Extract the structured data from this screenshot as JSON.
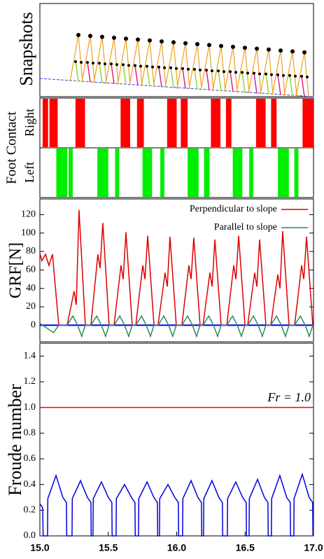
{
  "chart_data": [
    {
      "type": "illustration",
      "ylabel": "Snapshots"
    },
    {
      "type": "timeline",
      "ylabel": "Foot Contact",
      "xlim": [
        15,
        17
      ],
      "series": [
        {
          "name": "Right",
          "color": "#ff0000",
          "intervals": [
            [
              15.02,
              15.06
            ],
            [
              15.07,
              15.13
            ],
            [
              15.26,
              15.33
            ],
            [
              15.59,
              15.66
            ],
            [
              15.71,
              15.76
            ],
            [
              15.93,
              16.0
            ],
            [
              16.03,
              16.08
            ],
            [
              16.25,
              16.32
            ],
            [
              16.36,
              16.4
            ],
            [
              16.58,
              16.65
            ],
            [
              16.69,
              16.73
            ],
            [
              16.92,
              17.0
            ]
          ]
        },
        {
          "name": "Left",
          "color": "#00ee00",
          "intervals": [
            [
              15.12,
              15.2
            ],
            [
              15.21,
              15.24
            ],
            [
              15.42,
              15.5
            ],
            [
              15.55,
              15.58
            ],
            [
              15.75,
              15.82
            ],
            [
              15.88,
              15.91
            ],
            [
              16.08,
              16.16
            ],
            [
              16.2,
              16.24
            ],
            [
              16.41,
              16.48
            ],
            [
              16.53,
              16.56
            ],
            [
              16.74,
              16.82
            ],
            [
              16.86,
              16.89
            ]
          ]
        }
      ]
    },
    {
      "type": "line",
      "ylabel": "GRF[N]",
      "xlim": [
        15,
        17
      ],
      "ylim": [
        -18,
        137
      ],
      "yticks": [
        0,
        20,
        40,
        60,
        80,
        100,
        120
      ],
      "legend": "upper right",
      "series": [
        {
          "name": "Perpendicular to slope",
          "color": "#dd0000",
          "x": [
            15.0,
            15.015,
            15.041,
            15.066,
            15.092,
            15.138,
            15.199,
            15.25,
            15.266,
            15.286,
            15.332,
            15.373,
            15.424,
            15.44,
            15.46,
            15.506,
            15.542,
            15.593,
            15.609,
            15.629,
            15.675,
            15.701,
            15.752,
            15.768,
            15.788,
            15.834,
            15.864,
            15.915,
            15.931,
            15.951,
            15.997,
            16.038,
            16.089,
            16.105,
            16.125,
            16.171,
            16.192,
            16.243,
            16.259,
            16.279,
            16.325,
            16.366,
            16.417,
            16.433,
            16.453,
            16.499,
            16.519,
            16.57,
            16.586,
            16.606,
            16.652,
            16.688,
            16.739,
            16.755,
            16.775,
            16.821,
            16.862,
            16.913,
            16.929,
            16.949,
            16.995,
            17.0
          ],
          "values": [
            78,
            70,
            77,
            65,
            77,
            0,
            0,
            37,
            22,
            125,
            0,
            0,
            77,
            62,
            111,
            0,
            0,
            65,
            50,
            101,
            0,
            0,
            65,
            50,
            97,
            0,
            0,
            57,
            42,
            96,
            0,
            0,
            65,
            50,
            95,
            0,
            0,
            57,
            42,
            93,
            0,
            0,
            65,
            50,
            97,
            0,
            0,
            57,
            42,
            93,
            0,
            0,
            55,
            40,
            102,
            0,
            0,
            65,
            50,
            96,
            0,
            0
          ]
        },
        {
          "name": "Parallel to slope",
          "color": "#2e8b57",
          "x": [
            15.0,
            15.1,
            15.138,
            15.199,
            15.241,
            15.276,
            15.306,
            15.332,
            15.373,
            15.415,
            15.45,
            15.48,
            15.506,
            15.542,
            15.584,
            15.619,
            15.649,
            15.675,
            15.701,
            15.743,
            15.778,
            15.808,
            15.834,
            15.864,
            15.906,
            15.941,
            15.971,
            15.997,
            16.038,
            16.08,
            16.115,
            16.145,
            16.171,
            16.192,
            16.234,
            16.269,
            16.299,
            16.325,
            16.366,
            16.408,
            16.443,
            16.473,
            16.499,
            16.519,
            16.561,
            16.596,
            16.626,
            16.652,
            16.688,
            16.73,
            16.765,
            16.795,
            16.821,
            16.862,
            16.904,
            16.939,
            16.969,
            16.995
          ],
          "values": [
            2,
            -8,
            0,
            0,
            10,
            0,
            -12,
            0,
            0,
            10,
            0,
            -12,
            0,
            0,
            10,
            0,
            -12,
            0,
            0,
            10,
            0,
            -12,
            0,
            0,
            10,
            0,
            -12,
            0,
            0,
            10,
            0,
            -12,
            0,
            0,
            10,
            0,
            -12,
            0,
            0,
            10,
            0,
            -12,
            0,
            0,
            10,
            0,
            -12,
            0,
            0,
            10,
            0,
            -12,
            0,
            0,
            10,
            0,
            -12,
            0
          ]
        }
      ]
    },
    {
      "type": "line",
      "ylabel": "Froude number",
      "xlim": [
        15,
        17
      ],
      "ylim": [
        0,
        1.5
      ],
      "yticks": [
        {
          "value": 0,
          "label": "0.0"
        },
        {
          "value": 0.2,
          "label": "0.2"
        },
        {
          "value": 0.4,
          "label": "0.4"
        },
        {
          "value": 0.6,
          "label": "0.6"
        },
        {
          "value": 0.8,
          "label": "0.8"
        },
        {
          "value": 1,
          "label": "1.0"
        },
        {
          "value": 1.2,
          "label": "1.2"
        },
        {
          "value": 1.4,
          "label": "1.4"
        }
      ],
      "xticks": [
        {
          "value": 15,
          "label": "15.0"
        },
        {
          "value": 15.5,
          "label": "15.5"
        },
        {
          "value": 16,
          "label": "16.0"
        },
        {
          "value": 16.5,
          "label": "16.5"
        },
        {
          "value": 17,
          "label": "17.0"
        }
      ],
      "reference_lines": [
        {
          "value": 1,
          "label": "Fr = 1.0",
          "color": "#ff0000"
        }
      ],
      "series": [
        {
          "color": "#0000dd",
          "x": [
            15.0,
            15.02,
            15.024,
            15.056,
            15.058,
            15.118,
            15.168,
            15.194,
            15.196,
            15.235,
            15.237,
            15.297,
            15.347,
            15.373,
            15.375,
            15.388,
            15.39,
            15.45,
            15.5,
            15.526,
            15.528,
            15.557,
            15.559,
            15.619,
            15.669,
            15.695,
            15.697,
            15.721,
            15.723,
            15.783,
            15.833,
            15.859,
            15.861,
            15.874,
            15.876,
            15.936,
            15.986,
            16.012,
            16.014,
            16.043,
            16.045,
            16.105,
            16.155,
            16.181,
            16.183,
            16.196,
            16.198,
            16.258,
            16.308,
            16.334,
            16.336,
            16.37,
            16.372,
            16.432,
            16.482,
            16.508,
            16.51,
            16.529,
            16.531,
            16.591,
            16.641,
            16.667,
            16.669,
            16.692,
            16.694,
            16.754,
            16.804,
            16.83,
            16.832,
            16.856,
            16.858,
            16.918,
            16.968,
            16.994,
            16.996
          ],
          "values": [
            0.25,
            0.22,
            0,
            0,
            0.29,
            0.47,
            0.3,
            0.26,
            0,
            0,
            0.29,
            0.43,
            0.3,
            0.26,
            0,
            0,
            0.29,
            0.42,
            0.3,
            0.26,
            0,
            0,
            0.29,
            0.4,
            0.3,
            0.26,
            0,
            0,
            0.29,
            0.42,
            0.3,
            0.26,
            0,
            0,
            0.29,
            0.4,
            0.3,
            0.26,
            0,
            0,
            0.29,
            0.43,
            0.3,
            0.26,
            0,
            0,
            0.29,
            0.43,
            0.3,
            0.26,
            0,
            0,
            0.29,
            0.42,
            0.3,
            0.26,
            0,
            0,
            0.29,
            0.44,
            0.3,
            0.26,
            0,
            0,
            0.29,
            0.47,
            0.3,
            0.26,
            0,
            0,
            0.29,
            0.48,
            0.3,
            0.26,
            0
          ]
        }
      ]
    }
  ]
}
